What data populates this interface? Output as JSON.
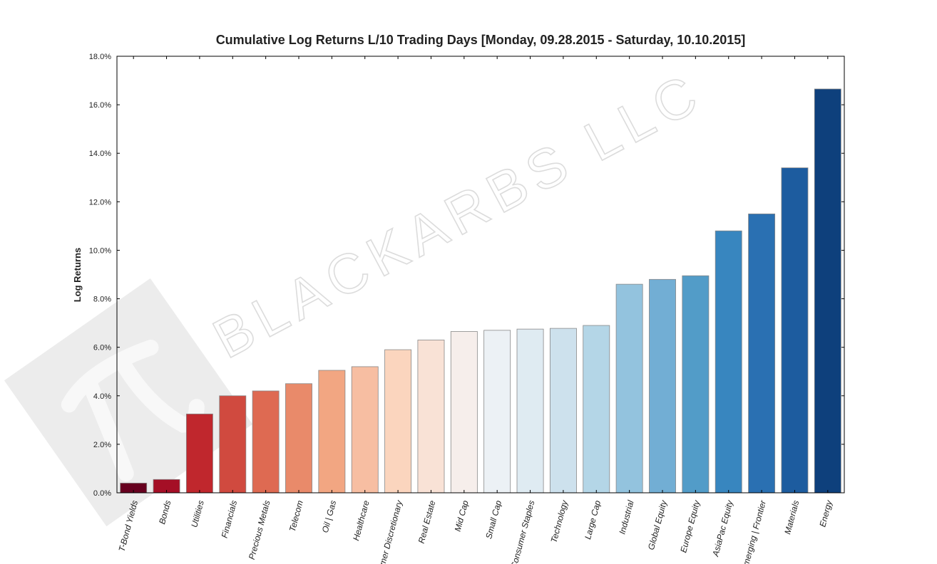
{
  "watermark_text": "BLACKARBS LLC",
  "chart_data": {
    "type": "bar",
    "title": "Cumulative Log Returns L/10 Trading Days  [Monday, 09.28.2015 - Saturday, 10.10.2015]",
    "xlabel": "",
    "ylabel": "Log Returns",
    "ylim": [
      0,
      18
    ],
    "yticks": [
      "0.0%",
      "2.0%",
      "4.0%",
      "6.0%",
      "8.0%",
      "10.0%",
      "12.0%",
      "14.0%",
      "16.0%",
      "18.0%"
    ],
    "categories": [
      "T-Bond Yields",
      "Bonds",
      "Utilities",
      "Financials",
      "Precious Metals",
      "Telecom",
      "Oil | Gas",
      "Healthcare",
      "Consumer Discretionary",
      "Real Estate",
      "Mid Cap",
      "Small Cap",
      "Consumer Staples",
      "Technology",
      "Large Cap",
      "Industrial",
      "Global Equity",
      "Europe Equity",
      "AsiaPac Equity",
      "Emerging | Frontier",
      "Materials",
      "Energy"
    ],
    "values": [
      0.4,
      0.55,
      3.25,
      4.0,
      4.2,
      4.5,
      5.05,
      5.2,
      5.9,
      6.3,
      6.65,
      6.7,
      6.75,
      6.78,
      6.9,
      8.6,
      8.8,
      8.95,
      10.8,
      11.5,
      13.4,
      16.65
    ],
    "colors": [
      "#67001f",
      "#a50f26",
      "#c0272d",
      "#d04a3f",
      "#de6a52",
      "#e98a6a",
      "#f2a682",
      "#f7bea2",
      "#fbd5be",
      "#f9e2d6",
      "#f6eeeb",
      "#ecf1f5",
      "#dfebf2",
      "#cde1ed",
      "#b4d6e7",
      "#93c3de",
      "#72aed4",
      "#529cc8",
      "#3886bf",
      "#2a70b2",
      "#1d5c9f",
      "#0e407c"
    ],
    "grid": false,
    "legend": "none"
  }
}
